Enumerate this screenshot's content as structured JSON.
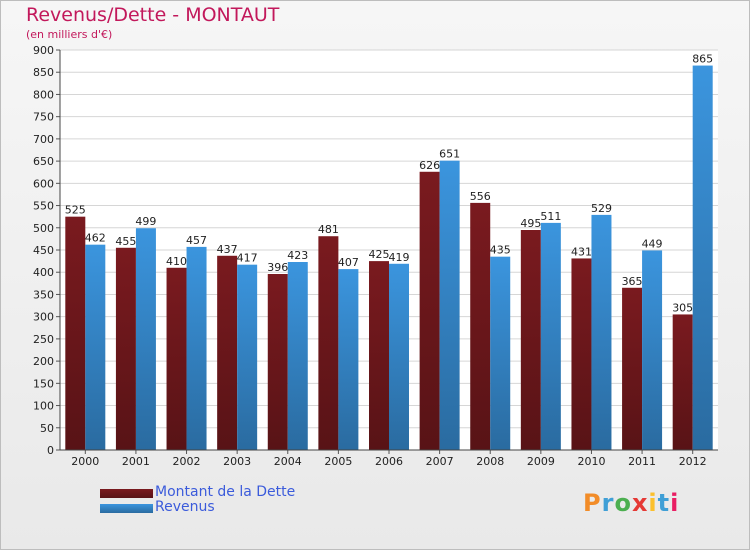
{
  "chart_data": {
    "type": "bar",
    "title": "Revenus/Dette - MONTAUT",
    "subtitle": "(en milliers d'€)",
    "categories": [
      "2000",
      "2001",
      "2002",
      "2003",
      "2004",
      "2005",
      "2006",
      "2007",
      "2008",
      "2009",
      "2010",
      "2011",
      "2012"
    ],
    "series": [
      {
        "name": "Montant de la Dette",
        "color": "#7a1a1f",
        "values": [
          525,
          455,
          410,
          437,
          396,
          481,
          425,
          626,
          556,
          495,
          431,
          365,
          305
        ]
      },
      {
        "name": "Revenus",
        "color": "#3b95de",
        "values": [
          462,
          499,
          457,
          417,
          423,
          407,
          419,
          651,
          435,
          511,
          529,
          449,
          865
        ]
      }
    ],
    "ylim": [
      0,
      900
    ],
    "yticks": [
      0,
      50,
      100,
      150,
      200,
      250,
      300,
      350,
      400,
      450,
      500,
      550,
      600,
      650,
      700,
      750,
      800,
      850,
      900
    ],
    "grid": true,
    "legend_position": "bottom-left"
  },
  "logo": {
    "text": [
      "P",
      "r",
      "o",
      "x",
      "i",
      "t",
      "i"
    ],
    "colors": [
      "#f28c28",
      "#3f9fd6",
      "#4caf50",
      "#e53935",
      "#fbc02d",
      "#3f9fd6",
      "#e91e63"
    ]
  }
}
